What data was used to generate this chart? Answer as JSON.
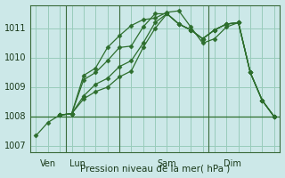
{
  "xlabel": "Pression niveau de la mer( hPa )",
  "bg_color": "#cce8e8",
  "grid_color": "#99ccbb",
  "line_color": "#2d6e2d",
  "ylim": [
    1006.8,
    1011.8
  ],
  "xlim": [
    -0.5,
    20.5
  ],
  "yticks": [
    1007,
    1008,
    1009,
    1010,
    1011
  ],
  "x_labels": [
    [
      1.0,
      "Ven"
    ],
    [
      3.5,
      "Lun"
    ],
    [
      11.0,
      "Sam"
    ],
    [
      16.5,
      "Dim"
    ]
  ],
  "x_vlines": [
    2.5,
    7.0,
    14.5
  ],
  "series": [
    {
      "x": [
        0,
        1,
        2,
        3,
        4,
        5,
        6,
        7,
        8,
        9,
        10,
        11,
        12,
        13,
        14,
        15,
        16,
        17,
        18,
        19,
        20
      ],
      "y": [
        1007.35,
        1007.8,
        1008.05,
        1008.1,
        1009.4,
        1009.65,
        1010.35,
        1010.75,
        1011.1,
        1011.3,
        1011.35,
        1011.55,
        1011.6,
        1011.05,
        1010.5,
        1010.65,
        1011.05,
        1011.2,
        1009.5,
        1008.55,
        1008.0
      ]
    },
    {
      "x": [
        2,
        3,
        4,
        5,
        6,
        7,
        8,
        9,
        10,
        11,
        12,
        13,
        14,
        15,
        16,
        17,
        18,
        19,
        20
      ],
      "y": [
        1008.05,
        1008.1,
        1009.25,
        1009.5,
        1009.9,
        1010.35,
        1010.4,
        1011.05,
        1011.5,
        1011.5,
        1011.15,
        1010.95,
        1010.65,
        1010.95,
        1011.15,
        1011.2,
        1009.5,
        1008.55,
        1008.0
      ]
    },
    {
      "x": [
        2,
        3,
        4,
        5,
        6,
        7,
        8,
        9,
        10,
        11,
        12,
        13,
        14,
        15,
        16,
        17,
        18,
        19,
        20
      ],
      "y": [
        1008.05,
        1008.1,
        1008.7,
        1009.1,
        1009.3,
        1009.7,
        1009.9,
        1010.5,
        1011.2,
        1011.5,
        1011.15,
        1010.95,
        1010.65,
        1010.95,
        1011.15,
        1011.2,
        1009.5,
        1008.55,
        1008.0
      ]
    },
    {
      "x": [
        2,
        3,
        4,
        5,
        6,
        7,
        8,
        9,
        10,
        11,
        12,
        13,
        14,
        15,
        16,
        17,
        18,
        19,
        20
      ],
      "y": [
        1008.05,
        1008.1,
        1008.6,
        1008.85,
        1009.0,
        1009.35,
        1009.55,
        1010.35,
        1011.0,
        1011.5,
        1011.15,
        1010.95,
        1010.65,
        1010.95,
        1011.15,
        1011.2,
        1009.5,
        1008.55,
        1008.0
      ]
    }
  ],
  "hline_y": 1008.0,
  "xlabel_fontsize": 7.5,
  "tick_fontsize": 7,
  "marker_size": 2.5,
  "linewidth": 0.9
}
